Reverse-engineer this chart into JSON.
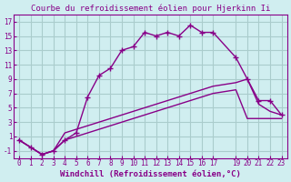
{
  "title": "Courbe du refroidissement éolien pour Hjerkinn Ii",
  "xlabel": "Windchill (Refroidissement éolien,°C)",
  "bg_color": "#d0eef0",
  "line_color": "#880088",
  "grid_color": "#aacccc",
  "xlim": [
    -0.5,
    23.5
  ],
  "ylim": [
    -2,
    18
  ],
  "yticks": [
    -1,
    1,
    3,
    5,
    7,
    9,
    11,
    13,
    15,
    17
  ],
  "xticks": [
    0,
    1,
    2,
    3,
    4,
    5,
    6,
    7,
    8,
    9,
    10,
    11,
    12,
    13,
    14,
    15,
    16,
    17,
    19,
    20,
    21,
    22,
    23
  ],
  "line1_x": [
    0,
    1,
    2,
    3,
    4,
    5,
    6,
    7,
    8,
    9,
    10,
    11,
    12,
    13,
    14,
    15,
    16,
    17,
    19,
    20,
    21,
    22,
    23
  ],
  "line1_y": [
    0.5,
    -0.5,
    -1.5,
    -1.0,
    0.5,
    1.5,
    6.5,
    9.5,
    10.5,
    13.0,
    13.5,
    15.5,
    15.0,
    15.5,
    15.0,
    16.5,
    15.5,
    15.5,
    12.0,
    9.0,
    6.0,
    6.0,
    4.0
  ],
  "line2_x": [
    0,
    1,
    2,
    3,
    4,
    5,
    6,
    7,
    8,
    9,
    10,
    11,
    12,
    13,
    14,
    15,
    16,
    17,
    19,
    20,
    21,
    22,
    23
  ],
  "line2_y": [
    0.5,
    -0.5,
    -1.5,
    -1.0,
    1.5,
    2.0,
    2.5,
    3.0,
    3.5,
    4.0,
    4.5,
    5.0,
    5.5,
    6.0,
    6.5,
    7.0,
    7.5,
    8.0,
    8.5,
    9.0,
    5.5,
    4.5,
    4.0
  ],
  "line3_x": [
    0,
    1,
    2,
    3,
    4,
    5,
    6,
    7,
    8,
    9,
    10,
    11,
    12,
    13,
    14,
    15,
    16,
    17,
    19,
    20,
    21,
    22,
    23
  ],
  "line3_y": [
    0.5,
    -0.5,
    -1.5,
    -1.0,
    0.5,
    1.0,
    1.5,
    2.0,
    2.5,
    3.0,
    3.5,
    4.0,
    4.5,
    5.0,
    5.5,
    6.0,
    6.5,
    7.0,
    7.5,
    3.5,
    3.5,
    3.5,
    3.5
  ]
}
